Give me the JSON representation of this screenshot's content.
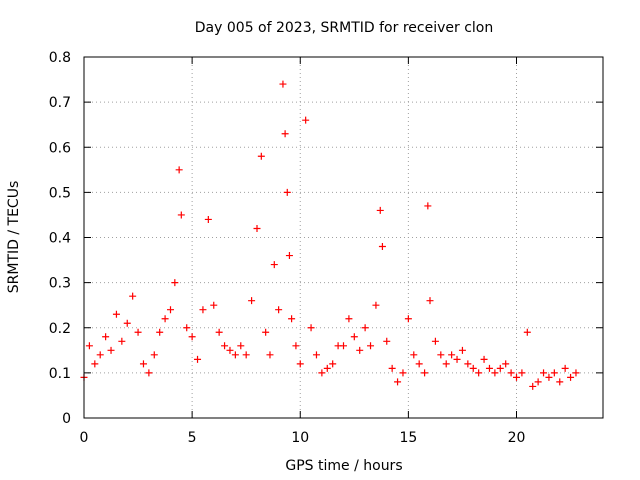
{
  "chart_data": {
    "type": "scatter",
    "title": "Day 005 of 2023, SRMTID for receiver clon",
    "xlabel": "GPS time / hours",
    "ylabel": "SRMTID / TECUs",
    "xlim": [
      0,
      24
    ],
    "ylim": [
      0,
      0.8
    ],
    "xticks": [
      0,
      5,
      10,
      15,
      20
    ],
    "xtick_labels": [
      "0",
      "5",
      "10",
      "15",
      "20"
    ],
    "yticks": [
      0,
      0.1,
      0.2,
      0.3,
      0.4,
      0.5,
      0.6,
      0.7,
      0.8
    ],
    "ytick_labels": [
      "0",
      "0.1",
      "0.2",
      "0.3",
      "0.4",
      "0.5",
      "0.6",
      "0.7",
      "0.8"
    ],
    "grid": true,
    "marker": "+",
    "colors": {
      "series": "#ff0000",
      "grid": "#a0a0a0",
      "axis": "#000000"
    },
    "series": [
      {
        "name": "SRMTID",
        "x": [
          0.0,
          0.25,
          0.5,
          0.75,
          1.0,
          1.25,
          1.5,
          1.75,
          2.0,
          2.25,
          2.5,
          2.75,
          3.0,
          3.25,
          3.5,
          3.75,
          4.0,
          4.2,
          4.4,
          4.5,
          4.75,
          5.0,
          5.25,
          5.5,
          5.75,
          6.0,
          6.25,
          6.5,
          6.75,
          7.0,
          7.25,
          7.5,
          7.75,
          8.0,
          8.2,
          8.4,
          8.6,
          8.8,
          9.0,
          9.2,
          9.3,
          9.4,
          9.5,
          9.6,
          9.8,
          10.0,
          10.25,
          10.5,
          10.75,
          11.0,
          11.25,
          11.5,
          11.75,
          12.0,
          12.25,
          12.5,
          12.75,
          13.0,
          13.25,
          13.5,
          13.7,
          13.8,
          14.0,
          14.25,
          14.5,
          14.75,
          15.0,
          15.25,
          15.5,
          15.75,
          15.9,
          16.0,
          16.25,
          16.5,
          16.75,
          17.0,
          17.25,
          17.5,
          17.75,
          18.0,
          18.25,
          18.5,
          18.75,
          19.0,
          19.25,
          19.5,
          19.75,
          20.0,
          20.25,
          20.5,
          20.75,
          21.0,
          21.25,
          21.5,
          21.75,
          22.0,
          22.25,
          22.5,
          22.75
        ],
        "y": [
          0.09,
          0.16,
          0.12,
          0.14,
          0.18,
          0.15,
          0.23,
          0.17,
          0.21,
          0.27,
          0.19,
          0.12,
          0.1,
          0.14,
          0.19,
          0.22,
          0.24,
          0.3,
          0.55,
          0.45,
          0.2,
          0.18,
          0.13,
          0.24,
          0.44,
          0.25,
          0.19,
          0.16,
          0.15,
          0.14,
          0.16,
          0.14,
          0.26,
          0.42,
          0.58,
          0.19,
          0.14,
          0.34,
          0.24,
          0.74,
          0.63,
          0.5,
          0.36,
          0.22,
          0.16,
          0.12,
          0.66,
          0.2,
          0.14,
          0.1,
          0.11,
          0.12,
          0.16,
          0.16,
          0.22,
          0.18,
          0.15,
          0.2,
          0.16,
          0.25,
          0.46,
          0.38,
          0.17,
          0.11,
          0.08,
          0.1,
          0.22,
          0.14,
          0.12,
          0.1,
          0.47,
          0.26,
          0.17,
          0.14,
          0.12,
          0.14,
          0.13,
          0.15,
          0.12,
          0.11,
          0.1,
          0.13,
          0.11,
          0.1,
          0.11,
          0.12,
          0.1,
          0.09,
          0.1,
          0.19,
          0.07,
          0.08,
          0.1,
          0.09,
          0.1,
          0.08,
          0.11,
          0.09,
          0.1
        ]
      }
    ]
  }
}
